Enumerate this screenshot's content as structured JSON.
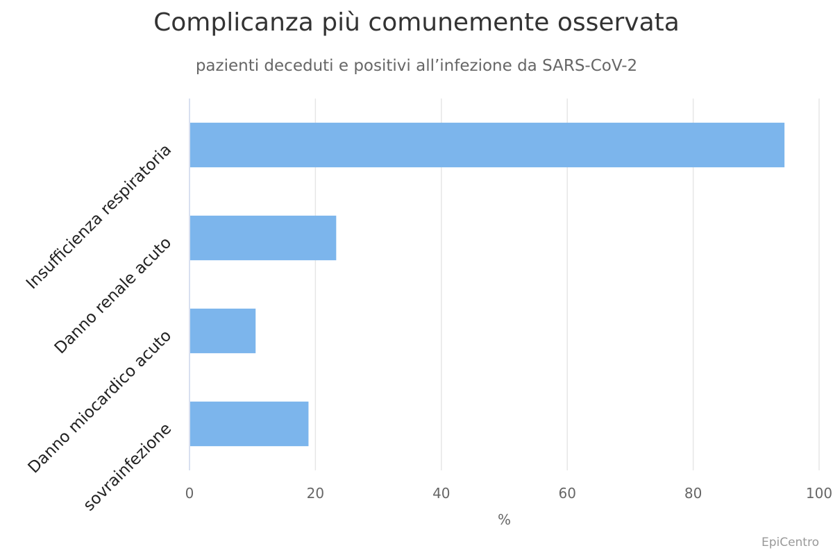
{
  "chart_data": {
    "type": "bar",
    "orientation": "horizontal",
    "title": "Complicanza più comunemente osservata",
    "subtitle": "pazienti deceduti e positivi all’infezione da SARS-CoV-2",
    "categories": [
      "Insufficienza respiratoria",
      "Danno renale acuto",
      "Danno miocardico acuto",
      "sovrainfezione"
    ],
    "values": [
      94.5,
      23.3,
      10.5,
      18.9
    ],
    "xlabel": "%",
    "ylabel": "",
    "xlim": [
      0,
      100
    ],
    "ticks": [
      "0",
      "20",
      "40",
      "60",
      "80",
      "100"
    ],
    "tick_values": [
      0,
      20,
      40,
      60,
      80,
      100
    ],
    "grid": true,
    "bar_color": "#7cb5ec",
    "grid_color": "#e6e6e6",
    "axis_color": "#ccd6eb"
  },
  "credits": "EpiCentro"
}
